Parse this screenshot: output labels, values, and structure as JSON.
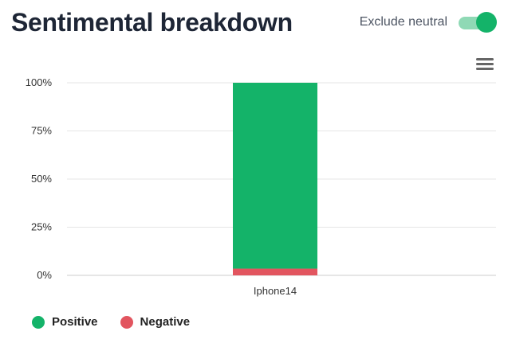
{
  "header": {
    "title": "Sentimental breakdown",
    "toggle_label": "Exclude neutral",
    "toggle_on": true
  },
  "colors": {
    "positive": "#14b369",
    "negative": "#e2555f",
    "toggle_track": "#8fd9b5",
    "grid": "#e6e6e6"
  },
  "icons": {
    "menu": "hamburger-menu-icon"
  },
  "chart_data": {
    "type": "bar",
    "stacked": true,
    "categories": [
      "Iphone14"
    ],
    "series": [
      {
        "name": "Positive",
        "values": [
          96.5
        ],
        "color": "#14b369"
      },
      {
        "name": "Negative",
        "values": [
          3.5
        ],
        "color": "#e2555f"
      }
    ],
    "yticks": [
      "0%",
      "25%",
      "50%",
      "75%",
      "100%"
    ],
    "ylim": [
      0,
      100
    ],
    "grid": true,
    "legend_position": "bottom-left"
  }
}
